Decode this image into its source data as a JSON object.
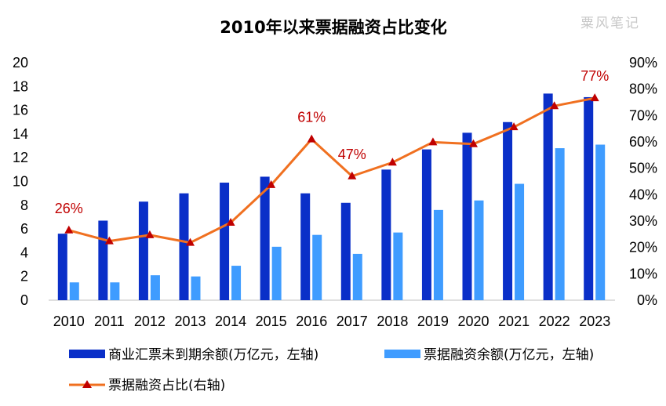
{
  "chart_data": {
    "type": "bar",
    "title": "2010年以来票据融资占比变化",
    "watermark": "粟风笔记",
    "categories": [
      "2010",
      "2011",
      "2012",
      "2013",
      "2014",
      "2015",
      "2016",
      "2017",
      "2018",
      "2019",
      "2020",
      "2021",
      "2022",
      "2023"
    ],
    "series": [
      {
        "name": "商业汇票未到期余额(万亿元，左轴)",
        "type": "bar",
        "axis": "left",
        "color": "#0a2fc8",
        "values": [
          5.6,
          6.7,
          8.3,
          9.0,
          9.9,
          10.4,
          9.0,
          8.2,
          11.0,
          12.7,
          14.1,
          15.0,
          17.4,
          17.1
        ]
      },
      {
        "name": "票据融资余额(万亿元，左轴)",
        "type": "bar",
        "axis": "left",
        "color": "#3f9cff",
        "values": [
          1.5,
          1.5,
          2.1,
          2.0,
          2.9,
          4.5,
          5.5,
          3.9,
          5.7,
          7.6,
          8.4,
          9.8,
          12.8,
          13.1
        ]
      },
      {
        "name": "票据融资占比(右轴)",
        "type": "line",
        "axis": "right",
        "color": "#f07020",
        "marker_color": "#c00000",
        "values": [
          26.5,
          22.4,
          24.7,
          21.8,
          29.4,
          43.7,
          61.0,
          47.0,
          52.2,
          59.9,
          59.2,
          65.6,
          73.6,
          76.6
        ]
      }
    ],
    "annotations": [
      {
        "index": 0,
        "text": "26%"
      },
      {
        "index": 6,
        "text": "61%"
      },
      {
        "index": 7,
        "text": "47%"
      },
      {
        "index": 13,
        "text": "77%"
      }
    ],
    "left_axis": {
      "ylim": [
        0,
        20
      ],
      "ticks": [
        "0",
        "2",
        "4",
        "6",
        "8",
        "10",
        "12",
        "14",
        "16",
        "18",
        "20"
      ]
    },
    "right_axis": {
      "ylim": [
        0,
        90
      ],
      "ticks": [
        "0%",
        "10%",
        "20%",
        "30%",
        "40%",
        "50%",
        "60%",
        "70%",
        "80%",
        "90%"
      ]
    },
    "grid": false,
    "legend_position": "bottom"
  }
}
